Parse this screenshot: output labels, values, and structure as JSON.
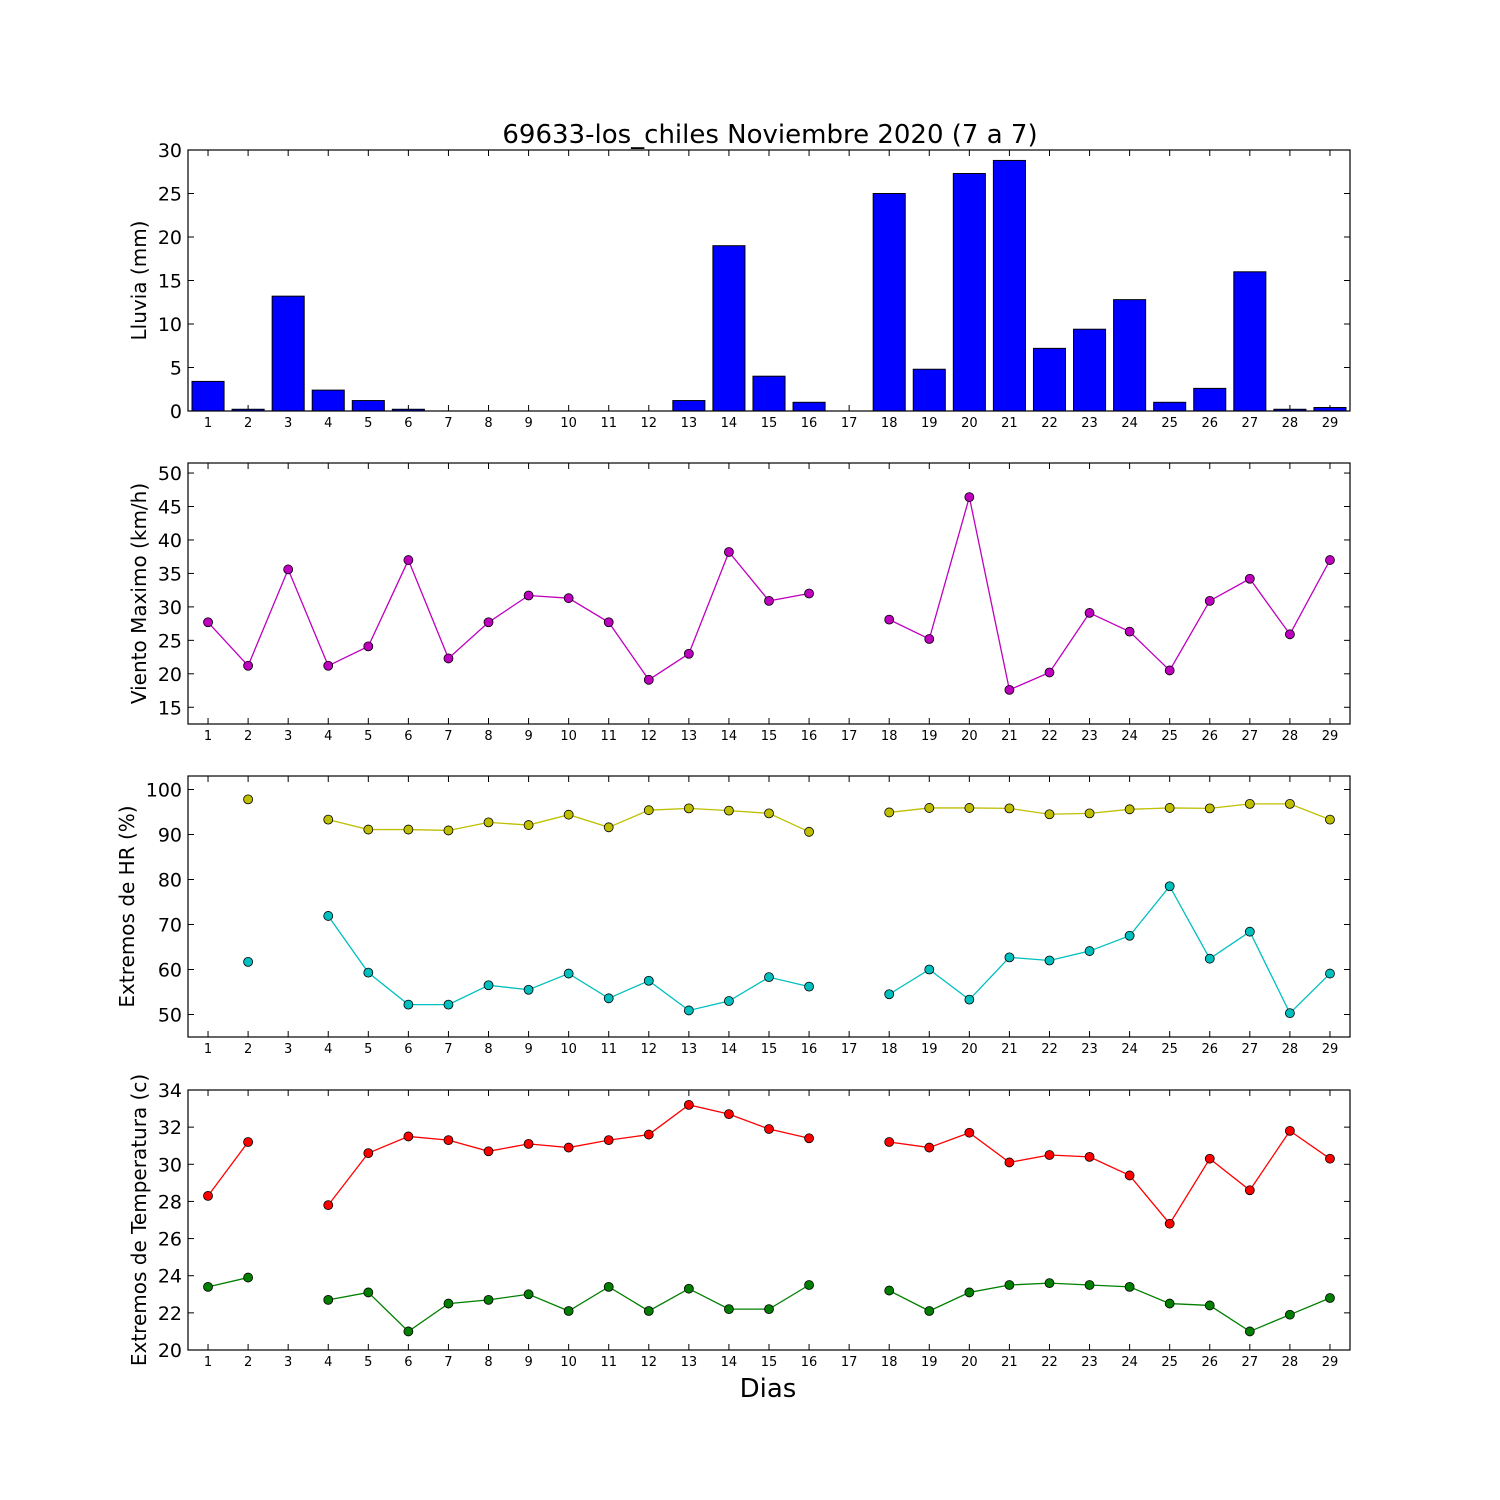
{
  "chart_data": {
    "title": "69633-los_chiles Noviembre 2020  (7 a 7)",
    "xlabel": "Dias",
    "days": [
      1,
      2,
      3,
      4,
      5,
      6,
      7,
      8,
      9,
      10,
      11,
      12,
      13,
      14,
      15,
      16,
      17,
      18,
      19,
      20,
      21,
      22,
      23,
      24,
      25,
      26,
      27,
      28,
      29
    ],
    "panels": [
      {
        "type": "bar",
        "ylabel": "Lluvia (mm)",
        "ylim": [
          0,
          30
        ],
        "yticks": [
          0,
          5,
          10,
          15,
          20,
          25,
          30
        ],
        "series": [
          {
            "color": "#0000ff",
            "values": [
              3.4,
              0.2,
              13.2,
              2.4,
              1.2,
              0.2,
              0,
              0,
              0,
              0,
              0,
              0,
              1.2,
              19.0,
              4.0,
              1.0,
              null,
              25.0,
              4.8,
              27.3,
              28.8,
              7.2,
              9.4,
              12.8,
              1.0,
              2.6,
              16.0,
              0.2,
              0.4
            ]
          }
        ]
      },
      {
        "type": "line",
        "ylabel": "Viento Maximo (km/h)",
        "ylim": [
          12.5,
          51.5
        ],
        "yticks": [
          15,
          20,
          25,
          30,
          35,
          40,
          45,
          50
        ],
        "series": [
          {
            "color": "#bf00bf",
            "values": [
              27.7,
              21.2,
              35.6,
              21.2,
              24.1,
              37.0,
              22.3,
              27.7,
              31.7,
              31.3,
              27.7,
              19.1,
              23.0,
              38.2,
              30.9,
              32.0,
              null,
              28.1,
              25.2,
              46.4,
              17.6,
              20.2,
              29.1,
              26.3,
              20.5,
              30.9,
              34.2,
              25.9,
              37.0
            ]
          }
        ]
      },
      {
        "type": "line",
        "ylabel": "Extremos de HR (%)",
        "ylim": [
          45,
          103
        ],
        "yticks": [
          50,
          60,
          70,
          80,
          90,
          100
        ],
        "series": [
          {
            "color": "#bfbf00",
            "values": [
              null,
              97.8,
              null,
              93.3,
              91.1,
              91.1,
              90.9,
              92.7,
              92.1,
              94.4,
              91.6,
              95.4,
              95.8,
              95.3,
              94.7,
              90.6,
              null,
              94.9,
              95.9,
              95.9,
              95.8,
              94.5,
              94.7,
              95.6,
              95.9,
              95.8,
              96.8,
              96.8,
              93.3
            ]
          },
          {
            "color": "#00bfbf",
            "values": [
              null,
              61.7,
              null,
              71.9,
              59.3,
              52.2,
              52.2,
              56.5,
              55.5,
              59.1,
              53.6,
              57.5,
              50.9,
              53.0,
              58.3,
              56.2,
              null,
              54.5,
              60.0,
              53.3,
              62.7,
              62.0,
              64.1,
              67.5,
              78.5,
              62.4,
              68.4,
              50.3,
              59.1
            ]
          }
        ]
      },
      {
        "type": "line",
        "ylabel": "Extremos de Temperatura (c)",
        "ylim": [
          20,
          34
        ],
        "yticks": [
          20,
          22,
          24,
          26,
          28,
          30,
          32,
          34
        ],
        "series": [
          {
            "color": "#ff0000",
            "values": [
              28.3,
              31.2,
              null,
              27.8,
              30.6,
              31.5,
              31.3,
              30.7,
              31.1,
              30.9,
              31.3,
              31.6,
              33.2,
              32.7,
              31.9,
              31.4,
              null,
              31.2,
              30.9,
              31.7,
              30.1,
              30.5,
              30.4,
              29.4,
              26.8,
              30.3,
              28.6,
              31.8,
              30.3
            ]
          },
          {
            "color": "#007f00",
            "values": [
              23.4,
              23.9,
              null,
              22.7,
              23.1,
              21.0,
              22.5,
              22.7,
              23.0,
              22.1,
              23.4,
              22.1,
              23.3,
              22.2,
              22.2,
              23.5,
              null,
              23.2,
              22.1,
              23.1,
              23.5,
              23.6,
              23.5,
              23.4,
              22.5,
              22.4,
              21.0,
              21.9,
              22.8
            ]
          }
        ]
      }
    ]
  }
}
